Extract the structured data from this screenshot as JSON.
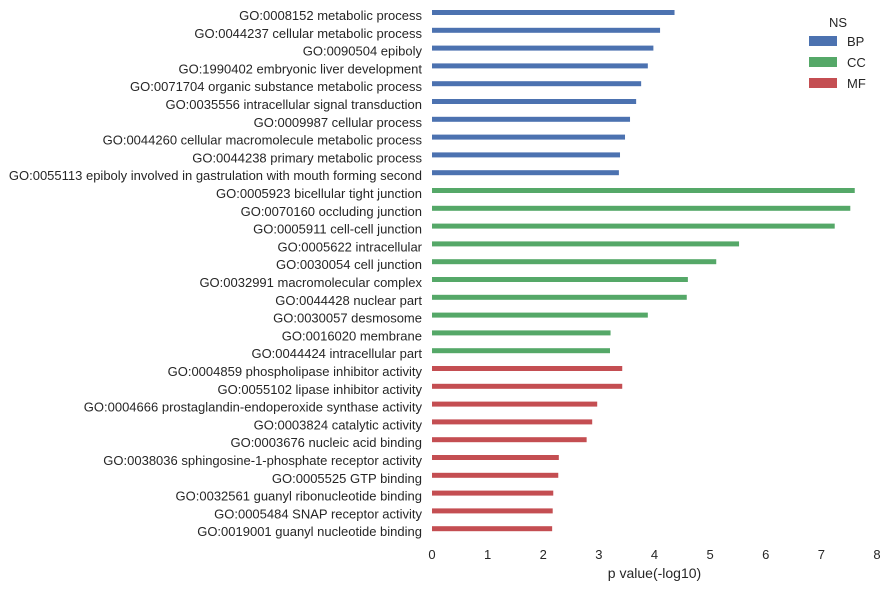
{
  "chart_data": {
    "type": "bar",
    "orientation": "horizontal",
    "title": "",
    "xlabel": "p value(-log10)",
    "ylabel": "",
    "xlim": [
      0,
      8
    ],
    "xticks": [
      0,
      1,
      2,
      3,
      4,
      5,
      6,
      7,
      8
    ],
    "grid": false,
    "legend": {
      "title": "NS",
      "placement": "top-right",
      "entries": [
        {
          "name": "BP",
          "color": "#4c72b0"
        },
        {
          "name": "CC",
          "color": "#55a868"
        },
        {
          "name": "MF",
          "color": "#c44e52"
        }
      ]
    },
    "categories": [
      "GO:0008152 metabolic process",
      "GO:0044237 cellular metabolic process",
      "GO:0090504 epiboly",
      "GO:1990402 embryonic liver development",
      "GO:0071704 organic substance metabolic process",
      "GO:0035556 intracellular signal transduction",
      "GO:0009987 cellular process",
      "GO:0044260 cellular macromolecule metabolic process",
      "GO:0044238 primary metabolic process",
      "GO:0055113 epiboly involved in gastrulation with mouth forming second",
      "GO:0005923 bicellular tight junction",
      "GO:0070160 occluding junction",
      "GO:0005911 cell-cell junction",
      "GO:0005622 intracellular",
      "GO:0030054 cell junction",
      "GO:0032991 macromolecular complex",
      "GO:0044428 nuclear part",
      "GO:0030057 desmosome",
      "GO:0016020 membrane",
      "GO:0044424 intracellular part",
      "GO:0004859 phospholipase inhibitor activity",
      "GO:0055102 lipase inhibitor activity",
      "GO:0004666 prostaglandin-endoperoxide synthase activity",
      "GO:0003824 catalytic activity",
      "GO:0003676 nucleic acid binding",
      "GO:0038036 sphingosine-1-phosphate receptor activity",
      "GO:0005525 GTP binding",
      "GO:0032561 guanyl ribonucleotide binding",
      "GO:0005484 SNAP receptor activity",
      "GO:0019001 guanyl nucleotide binding"
    ],
    "values": [
      4.36,
      4.1,
      3.98,
      3.88,
      3.76,
      3.67,
      3.56,
      3.47,
      3.38,
      3.36,
      7.6,
      7.52,
      7.24,
      5.52,
      5.11,
      4.6,
      4.58,
      3.88,
      3.21,
      3.2,
      3.42,
      3.42,
      2.97,
      2.88,
      2.78,
      2.28,
      2.27,
      2.18,
      2.17,
      2.16
    ],
    "ns": [
      "BP",
      "BP",
      "BP",
      "BP",
      "BP",
      "BP",
      "BP",
      "BP",
      "BP",
      "BP",
      "CC",
      "CC",
      "CC",
      "CC",
      "CC",
      "CC",
      "CC",
      "CC",
      "CC",
      "CC",
      "MF",
      "MF",
      "MF",
      "MF",
      "MF",
      "MF",
      "MF",
      "MF",
      "MF",
      "MF"
    ]
  }
}
